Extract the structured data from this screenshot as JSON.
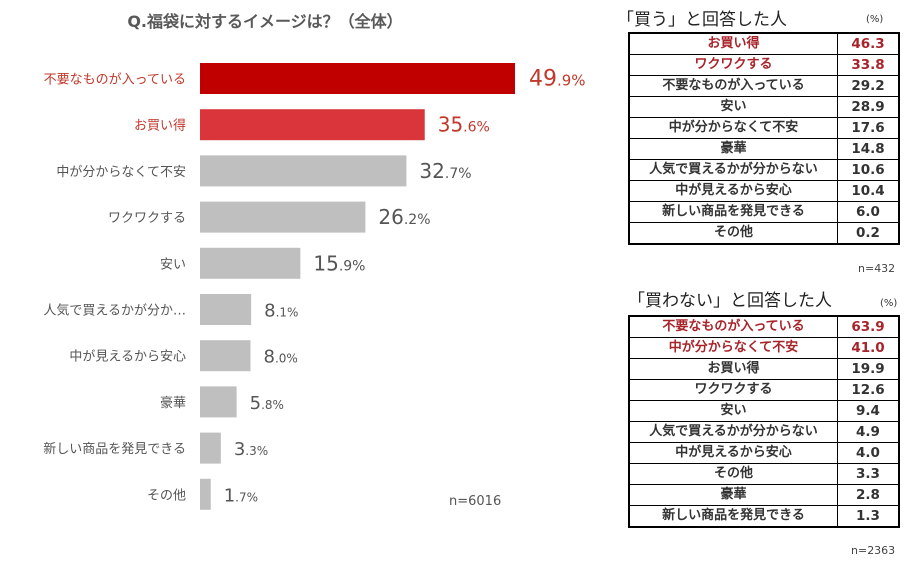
{
  "chart_data": [
    {
      "type": "bar",
      "orientation": "horizontal",
      "title": "Q.福袋に対するイメージは？（全体）",
      "categories": [
        "不要なものが入っている",
        "お買い得",
        "中が分からなくて不安",
        "ワクワクする",
        "安い",
        "人気で買えるかが分か…",
        "中が見えるから安心",
        "豪華",
        "新しい商品を発見できる",
        "その他"
      ],
      "values": [
        49.9,
        35.6,
        32.7,
        26.2,
        15.9,
        8.1,
        8.0,
        5.8,
        3.3,
        1.7
      ],
      "value_labels": [
        {
          "num": "49",
          "dec": ".9%"
        },
        {
          "num": "35",
          "dec": ".6%"
        },
        {
          "num": "32",
          "dec": ".7%"
        },
        {
          "num": "26",
          "dec": ".2%"
        },
        {
          "num": "15",
          "dec": ".9%"
        },
        {
          "num": "8",
          "dec": ".1%"
        },
        {
          "num": "8",
          "dec": ".0%"
        },
        {
          "num": "5",
          "dec": ".8%"
        },
        {
          "num": "3",
          "dec": ".3%"
        },
        {
          "num": "1",
          "dec": ".7%"
        }
      ],
      "bar_colors": [
        "#c00000",
        "#d9353b",
        "#bfbfbf",
        "#bfbfbf",
        "#bfbfbf",
        "#bfbfbf",
        "#bfbfbf",
        "#bfbfbf",
        "#bfbfbf",
        "#bfbfbf"
      ],
      "highlight_text_colors": [
        "#c0392b",
        "#c0392b",
        "#555555",
        "#555555",
        "#555555",
        "#555555",
        "#555555",
        "#555555",
        "#555555",
        "#555555"
      ],
      "xlim": [
        0,
        60
      ],
      "n_label": "n=6016"
    },
    {
      "type": "table",
      "title": "「買う」と回答した人",
      "unit": "(%)",
      "n_label": "n=432",
      "rows": [
        {
          "label": "お買い得",
          "value": "46.3",
          "highlight": true
        },
        {
          "label": "ワクワクする",
          "value": "33.8",
          "highlight": true
        },
        {
          "label": "不要なものが入っている",
          "value": "29.2",
          "highlight": false
        },
        {
          "label": "安い",
          "value": "28.9",
          "highlight": false
        },
        {
          "label": "中が分からなくて不安",
          "value": "17.6",
          "highlight": false
        },
        {
          "label": "豪華",
          "value": "14.8",
          "highlight": false
        },
        {
          "label": "人気で買えるかが分からない",
          "value": "10.6",
          "highlight": false
        },
        {
          "label": "中が見えるから安心",
          "value": "10.4",
          "highlight": false
        },
        {
          "label": "新しい商品を発見できる",
          "value": "6.0",
          "highlight": false
        },
        {
          "label": "その他",
          "value": "0.2",
          "highlight": false
        }
      ]
    },
    {
      "type": "table",
      "title": "「買わない」と回答した人",
      "unit": "(%)",
      "n_label": "n=2363",
      "rows": [
        {
          "label": "不要なものが入っている",
          "value": "63.9",
          "highlight": true
        },
        {
          "label": "中が分からなくて不安",
          "value": "41.0",
          "highlight": true
        },
        {
          "label": "お買い得",
          "value": "19.9",
          "highlight": false
        },
        {
          "label": "ワクワクする",
          "value": "12.6",
          "highlight": false
        },
        {
          "label": "安い",
          "value": "9.4",
          "highlight": false
        },
        {
          "label": "人気で買えるかが分からない",
          "value": "4.9",
          "highlight": false
        },
        {
          "label": "中が見えるから安心",
          "value": "4.0",
          "highlight": false
        },
        {
          "label": "その他",
          "value": "3.3",
          "highlight": false
        },
        {
          "label": "豪華",
          "value": "2.8",
          "highlight": false
        },
        {
          "label": "新しい商品を発見できる",
          "value": "1.3",
          "highlight": false
        }
      ]
    }
  ]
}
